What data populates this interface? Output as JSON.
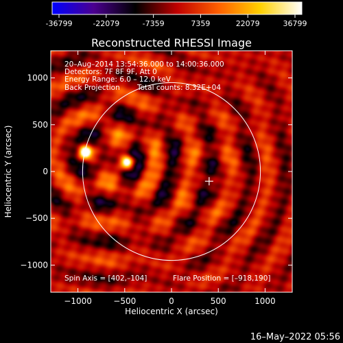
{
  "colorbar": {
    "ticks": [
      "-36799",
      "-22079",
      "-7359",
      "7359",
      "22079",
      "36799"
    ],
    "stops": [
      "#0000ff",
      "#4b0090",
      "#000000",
      "#c00000",
      "#ff6000",
      "#ffd000",
      "#ffffff"
    ]
  },
  "chart_data": {
    "type": "heatmap",
    "title": "Reconstructed RHESSI Image",
    "xlabel": "Heliocentric X (arcsec)",
    "ylabel": "Heliocentric Y (arcsec)",
    "xlim": [
      -1290,
      1290
    ],
    "ylim": [
      -1290,
      1290
    ],
    "x_ticks": [
      -1000,
      -500,
      0,
      500,
      1000
    ],
    "y_ticks": [
      1000,
      500,
      0,
      -500,
      -1000
    ],
    "x_tick_labels": [
      "−1000",
      "−500",
      "0",
      "500",
      "1000"
    ],
    "y_tick_labels": [
      "1000",
      "500",
      "0",
      "−500",
      "−1000"
    ],
    "value_range": [
      -36799,
      36799
    ],
    "solar_limb_radius": 950,
    "spin_axis": [
      402,
      -104
    ],
    "flare_position": [
      -918,
      190
    ],
    "sources": [
      {
        "x": -918,
        "y": 205
      },
      {
        "x": -470,
        "y": 95
      }
    ]
  },
  "info": {
    "line1": "20–Aug–2014 13:54:36.000 to 14:00:36.000",
    "line2": "Detectors: 7F 8F 9F, Att 0",
    "line3": "Energy Range: 6.0 – 12.0 keV",
    "line4a": "Back Projection",
    "line4b": "Total counts: 8.32E+04"
  },
  "footer": {
    "spin": "Spin Axis = [402,–104]",
    "flare": "Flare Position = [–918,190]"
  },
  "timestamp": "16–May–2022 05:56"
}
